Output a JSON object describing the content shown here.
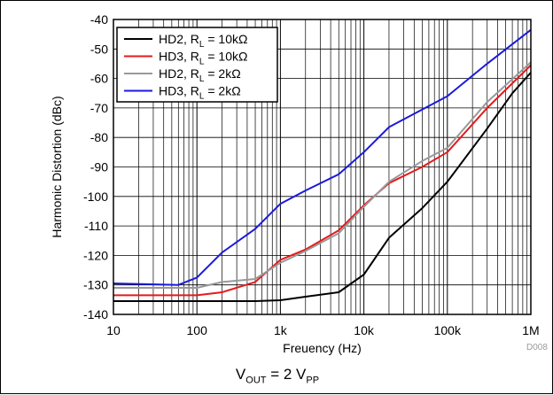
{
  "chart_data": {
    "type": "line",
    "title": "",
    "xlabel": "Freuency (Hz)",
    "ylabel": "Harmonic Distortion (dBc)",
    "xscale": "log",
    "xlim": [
      10,
      1000000
    ],
    "ylim": [
      -140,
      -40
    ],
    "grid": true,
    "x_ticks": [
      10,
      100,
      1000,
      10000,
      100000,
      1000000
    ],
    "x_tick_labels": [
      "10",
      "100",
      "1k",
      "10k",
      "100k",
      "1M"
    ],
    "y_ticks": [
      -140,
      -130,
      -120,
      -110,
      -100,
      -90,
      -80,
      -70,
      -60,
      -50,
      -40
    ],
    "y_tick_labels": [
      "-140",
      "-130",
      "-120",
      "-110",
      "-100",
      "-90",
      "-80",
      "-70",
      "-60",
      "-50",
      "-40"
    ],
    "legend_position": "top-left",
    "series": [
      {
        "name": "HD2, R_L = 10kΩ",
        "label_main": "HD2, R",
        "label_sub": "L",
        "label_rest": " = 10kΩ",
        "color": "#000000",
        "points": [
          [
            10,
            -135.5
          ],
          [
            100,
            -135.5
          ],
          [
            500,
            -135.5
          ],
          [
            1000,
            -135.2
          ],
          [
            2000,
            -134.0
          ],
          [
            5000,
            -132.5
          ],
          [
            10000,
            -126.5
          ],
          [
            20000,
            -114.0
          ],
          [
            50000,
            -104.0
          ],
          [
            100000,
            -95.0
          ],
          [
            300000,
            -77.0
          ],
          [
            600000,
            -65.0
          ],
          [
            1000000,
            -58.0
          ]
        ]
      },
      {
        "name": "HD3, R_L = 10kΩ",
        "label_main": "HD3, R",
        "label_sub": "L",
        "label_rest": " = 10kΩ",
        "color": "#e41a1c",
        "points": [
          [
            10,
            -133.5
          ],
          [
            100,
            -133.5
          ],
          [
            200,
            -132.5
          ],
          [
            500,
            -129.0
          ],
          [
            1000,
            -121.5
          ],
          [
            2000,
            -118.0
          ],
          [
            5000,
            -111.5
          ],
          [
            10000,
            -103.0
          ],
          [
            20000,
            -95.5
          ],
          [
            50000,
            -90.0
          ],
          [
            100000,
            -85.0
          ],
          [
            300000,
            -70.0
          ],
          [
            1000000,
            -55.5
          ]
        ]
      },
      {
        "name": "HD2, R_L = 2kΩ",
        "label_main": "HD2, R",
        "label_sub": "L",
        "label_rest": " = 2kΩ",
        "color": "#999999",
        "points": [
          [
            10,
            -131.0
          ],
          [
            100,
            -131.0
          ],
          [
            200,
            -129.0
          ],
          [
            500,
            -128.0
          ],
          [
            1000,
            -122.5
          ],
          [
            2000,
            -118.5
          ],
          [
            5000,
            -112.5
          ],
          [
            10000,
            -103.5
          ],
          [
            20000,
            -95.0
          ],
          [
            50000,
            -88.0
          ],
          [
            100000,
            -83.5
          ],
          [
            300000,
            -68.0
          ],
          [
            1000000,
            -54.5
          ]
        ]
      },
      {
        "name": "HD3, R_L = 2kΩ",
        "label_main": "HD3, R",
        "label_sub": "L",
        "label_rest": " = 2kΩ",
        "color": "#1a1adc",
        "points": [
          [
            10,
            -129.5
          ],
          [
            60,
            -130.0
          ],
          [
            100,
            -127.5
          ],
          [
            200,
            -119.0
          ],
          [
            500,
            -111.0
          ],
          [
            1000,
            -102.5
          ],
          [
            2000,
            -98.0
          ],
          [
            5000,
            -92.5
          ],
          [
            10000,
            -85.0
          ],
          [
            20000,
            -76.5
          ],
          [
            100000,
            -66.0
          ],
          [
            300000,
            -55.0
          ],
          [
            1000000,
            -43.5
          ]
        ]
      }
    ]
  },
  "figure_id": "D008",
  "caption": {
    "main": "V",
    "sub1": "OUT",
    "mid": " = 2 V",
    "sub2": "PP"
  }
}
